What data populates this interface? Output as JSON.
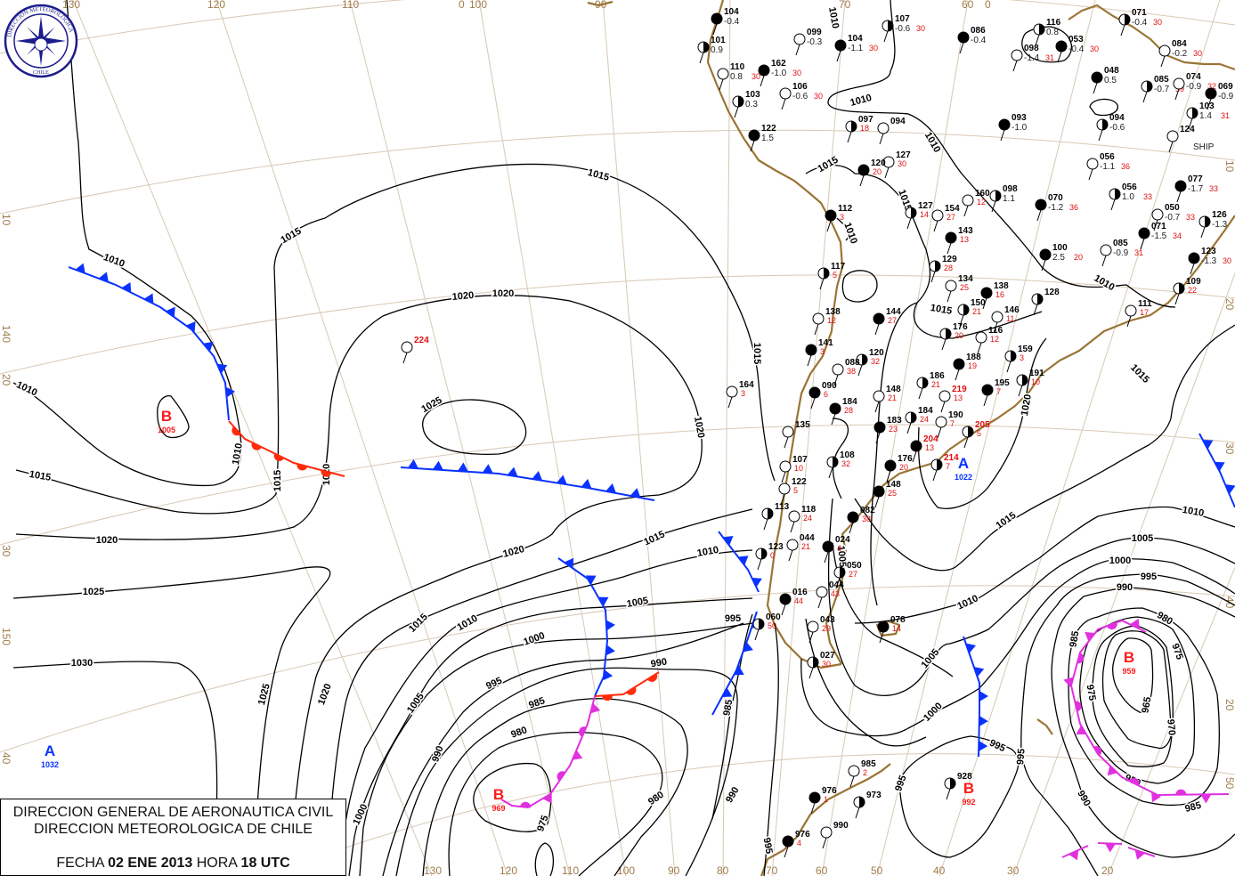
{
  "logo": {
    "text_top": "DIRECCION METEOROLOGICA",
    "text_bottom": "CHILE",
    "color": "#1c1c8c"
  },
  "title_box": {
    "line1": "DIRECCION GENERAL DE AERONAUTICA CIVIL",
    "line2": "DIRECCION METEOROLOGICA DE CHILE",
    "date_prefix": "FECHA",
    "date": "02 ENE 2013",
    "hour_prefix": "HORA",
    "hour": "18 UTC"
  },
  "colors": {
    "isobar": "#000000",
    "coastline": "#9b7434",
    "graticule": "#d8c8b4",
    "cold_front": "#0a32ff",
    "warm_front": "#ff2a0a",
    "occluded_front": "#e030e0",
    "high": "#0a32ff",
    "low": "#ff1a1a"
  },
  "graticule": {
    "lon_labels_top": [
      "130",
      "120",
      "110",
      "0",
      "100",
      "90",
      "70",
      "60",
      "0"
    ],
    "lon_labels_bottom": [
      "130",
      "120",
      "110",
      "100",
      "90",
      "80",
      "70",
      "60",
      "50",
      "40",
      "30",
      "20"
    ],
    "labels_left": [
      "10",
      "140",
      "20",
      "30",
      "150",
      "40"
    ],
    "labels_right": [
      "10",
      "20",
      "30",
      "40",
      "20",
      "50"
    ]
  },
  "pressure_centers": [
    {
      "type": "B",
      "value": "1005",
      "color": "#ff1a1a"
    },
    {
      "type": "A",
      "value": "1032",
      "color": "#0a32ff"
    },
    {
      "type": "B",
      "value": "969",
      "color": "#ff1a1a"
    },
    {
      "type": "A",
      "value": "1022",
      "color": "#0a32ff"
    },
    {
      "type": "B",
      "value": "959",
      "color": "#ff1a1a"
    },
    {
      "type": "B",
      "value": "992",
      "color": "#ff1a1a"
    }
  ],
  "isobar_labels": [
    "1010",
    "1010",
    "1010",
    "1015",
    "1015",
    "1015",
    "1015",
    "1015",
    "1020",
    "1020",
    "1020",
    "1020",
    "1020",
    "1020",
    "1020",
    "1025",
    "1025",
    "1025",
    "1030",
    "1015",
    "1015",
    "1010",
    "1010",
    "1005",
    "1005",
    "1000",
    "1000",
    "995",
    "995",
    "990",
    "990",
    "990",
    "985",
    "985",
    "980",
    "980",
    "975",
    "1010",
    "1010",
    "1015",
    "1010",
    "1015",
    "1015",
    "1010",
    "1010",
    "1020",
    "1015",
    "1015",
    "1010",
    "1010",
    "1005",
    "1005",
    "1005",
    "1000",
    "1000",
    "995",
    "995",
    "995",
    "995",
    "990",
    "990",
    "985",
    "985",
    "980",
    "980",
    "975",
    "975",
    "970",
    "965",
    "995"
  ],
  "stations": [
    {
      "id": "104",
      "t": "-0.4",
      "r": ""
    },
    {
      "id": "101",
      "t": "0.9",
      "r": ""
    },
    {
      "id": "099",
      "t": "-0.3",
      "r": ""
    },
    {
      "id": "104",
      "t": "-1.1",
      "r": "30"
    },
    {
      "id": "107",
      "t": "-0.6",
      "r": "30"
    },
    {
      "id": "110",
      "t": "0.8",
      "r": "30"
    },
    {
      "id": "162",
      "t": "-1.0",
      "r": "30"
    },
    {
      "id": "103",
      "t": "0.3",
      "r": ""
    },
    {
      "id": "106",
      "t": "-0.6",
      "r": "30"
    },
    {
      "id": "122",
      "t": "1.5",
      "r": ""
    },
    {
      "id": "097",
      "t": "",
      "r": "18"
    },
    {
      "id": "094",
      "t": "",
      "r": ""
    },
    {
      "id": "086",
      "t": "-0.4",
      "r": ""
    },
    {
      "id": "116",
      "t": "0.8",
      "r": ""
    },
    {
      "id": "098",
      "t": "-1.4",
      "r": "31"
    },
    {
      "id": "053",
      "t": "-0.4",
      "r": "30"
    },
    {
      "id": "071",
      "t": "-0.4",
      "r": "30"
    },
    {
      "id": "084",
      "t": "-0.2",
      "r": "30"
    },
    {
      "id": "048",
      "t": "0.5",
      "r": ""
    },
    {
      "id": "085",
      "t": "-0.7",
      "r": "39"
    },
    {
      "id": "074",
      "t": "-0.9",
      "r": "32"
    },
    {
      "id": "069",
      "t": "-0.9",
      "r": ""
    },
    {
      "id": "103",
      "t": "1.4",
      "r": "31"
    },
    {
      "id": "124",
      "t": "",
      "r": ""
    },
    {
      "id": "093",
      "t": "-1.0",
      "r": ""
    },
    {
      "id": "094",
      "t": "-0.6",
      "r": ""
    },
    {
      "id": "056",
      "t": "-1.1",
      "r": "36"
    },
    {
      "id": "077",
      "t": "-1.7",
      "r": "33"
    },
    {
      "id": "098",
      "t": "1.1",
      "r": ""
    },
    {
      "id": "160",
      "t": "",
      "r": "12"
    },
    {
      "id": "070",
      "t": "-1.2",
      "r": "36"
    },
    {
      "id": "056",
      "t": "1.0",
      "r": "33"
    },
    {
      "id": "050",
      "t": "-0.7",
      "r": "33"
    },
    {
      "id": "071",
      "t": "-1.5",
      "r": "34"
    },
    {
      "id": "126",
      "t": "-1.3",
      "r": ""
    },
    {
      "id": "085",
      "t": "-0.9",
      "r": "31"
    },
    {
      "id": "123",
      "t": "-1.3",
      "r": "30"
    },
    {
      "id": "109",
      "t": "",
      "r": "22"
    },
    {
      "id": "111",
      "t": "",
      "r": "17"
    },
    {
      "id": "100",
      "t": "2.5",
      "r": "20"
    },
    {
      "id": "128",
      "t": "",
      "r": ""
    },
    {
      "id": "127",
      "t": "",
      "r": "30"
    },
    {
      "id": "120",
      "t": "",
      "r": "20"
    },
    {
      "id": "127",
      "t": "",
      "r": "14"
    },
    {
      "id": "154",
      "t": "",
      "r": "27"
    },
    {
      "id": "143",
      "t": "",
      "r": "13"
    },
    {
      "id": "129",
      "t": "",
      "r": "28"
    },
    {
      "id": "134",
      "t": "",
      "r": "25"
    },
    {
      "id": "138",
      "t": "",
      "r": "16"
    },
    {
      "id": "150",
      "t": "",
      "r": "21"
    },
    {
      "id": "146",
      "t": "",
      "r": "11"
    },
    {
      "id": "112",
      "t": "",
      "r": "3"
    },
    {
      "id": "117",
      "t": "",
      "r": "5"
    },
    {
      "id": "138",
      "t": "",
      "r": "12"
    },
    {
      "id": "144",
      "t": "",
      "r": "27"
    },
    {
      "id": "176",
      "t": "",
      "r": "20"
    },
    {
      "id": "116",
      "t": "",
      "r": "12"
    },
    {
      "id": "141",
      "t": "",
      "r": "3"
    },
    {
      "id": "120",
      "t": "",
      "r": "32"
    },
    {
      "id": "088",
      "t": "",
      "r": "38"
    },
    {
      "id": "188",
      "t": "",
      "r": "19"
    },
    {
      "id": "159",
      "t": "",
      "r": "3"
    },
    {
      "id": "164",
      "t": "",
      "r": "3"
    },
    {
      "id": "090",
      "t": "",
      "r": "6"
    },
    {
      "id": "186",
      "t": "",
      "r": "21"
    },
    {
      "id": "148",
      "t": "",
      "r": "21"
    },
    {
      "id": "195",
      "t": "",
      "r": "7"
    },
    {
      "id": "191",
      "t": "",
      "r": "10"
    },
    {
      "id": "219",
      "t": "",
      "r": "13"
    },
    {
      "id": "184",
      "t": "",
      "r": "28"
    },
    {
      "id": "184",
      "t": "",
      "r": "24"
    },
    {
      "id": "190",
      "t": "",
      "r": "7"
    },
    {
      "id": "183",
      "t": "",
      "r": "23"
    },
    {
      "id": "205",
      "t": "",
      "r": "5"
    },
    {
      "id": "135",
      "t": "",
      "r": ""
    },
    {
      "id": "204",
      "t": "",
      "r": "13"
    },
    {
      "id": "108",
      "t": "",
      "r": "32"
    },
    {
      "id": "107",
      "t": "",
      "r": "10"
    },
    {
      "id": "176",
      "t": "",
      "r": "20"
    },
    {
      "id": "214",
      "t": "",
      "r": "7"
    },
    {
      "id": "122",
      "t": "",
      "r": "5"
    },
    {
      "id": "148",
      "t": "",
      "r": "25"
    },
    {
      "id": "113",
      "t": "",
      "r": ""
    },
    {
      "id": "118",
      "t": "",
      "r": "24"
    },
    {
      "id": "082",
      "t": "",
      "r": "38"
    },
    {
      "id": "123",
      "t": "",
      "r": "0"
    },
    {
      "id": "044",
      "t": "",
      "r": "21"
    },
    {
      "id": "024",
      "t": "",
      "r": "4"
    },
    {
      "id": "050",
      "t": "",
      "r": "27"
    },
    {
      "id": "044",
      "t": "",
      "r": "43"
    },
    {
      "id": "016",
      "t": "",
      "r": "44"
    },
    {
      "id": "060",
      "t": "",
      "r": "50"
    },
    {
      "id": "043",
      "t": "",
      "r": "29"
    },
    {
      "id": "078",
      "t": "",
      "r": "14"
    },
    {
      "id": "027",
      "t": "",
      "r": "30"
    },
    {
      "id": "985",
      "t": "",
      "r": "2"
    },
    {
      "id": "976",
      "t": "",
      "r": "1"
    },
    {
      "id": "973",
      "t": "",
      "r": ""
    },
    {
      "id": "990",
      "t": "",
      "r": ""
    },
    {
      "id": "976",
      "t": "",
      "r": "4"
    },
    {
      "id": "928",
      "t": "",
      "r": ""
    },
    {
      "id": "224",
      "t": "",
      "r": ""
    }
  ],
  "ship_label": "SHIP"
}
